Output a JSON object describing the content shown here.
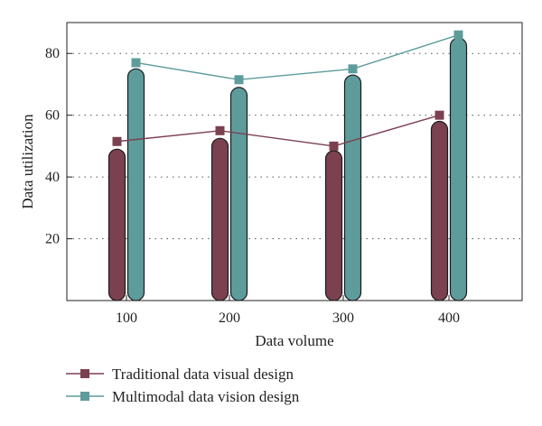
{
  "chart_data": {
    "type": "bar",
    "title": "",
    "xlabel": "Data volume",
    "ylabel": "Data utilization",
    "categories": [
      "100",
      "200",
      "300",
      "400"
    ],
    "ylim": [
      0,
      90
    ],
    "yticks": [
      20,
      40,
      60,
      80
    ],
    "grid": "horizontal-dotted",
    "legend_position": "bottom-left",
    "series": [
      {
        "name": "Traditional data visual design",
        "color": "#7b4150",
        "bar_values": [
          49,
          52.5,
          48.5,
          58
        ],
        "line_values": [
          51.5,
          55,
          50,
          60
        ]
      },
      {
        "name": "Multimodal data vision design",
        "color": "#5e9c9c",
        "bar_values": [
          75,
          69,
          73,
          85
        ],
        "line_values": [
          77,
          71.5,
          75,
          86
        ]
      }
    ]
  }
}
